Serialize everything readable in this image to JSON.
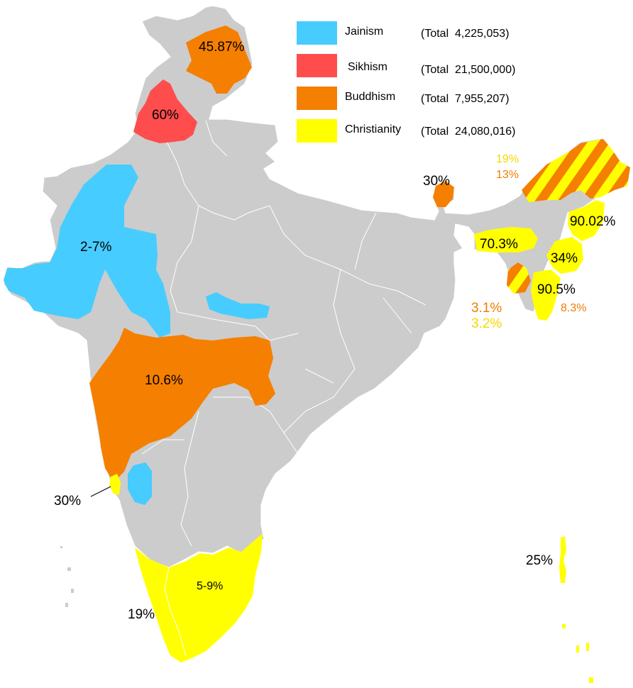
{
  "legend": [
    {
      "name": "Jainism",
      "total": "(Total  4,225,053)",
      "color": "#47ccff"
    },
    {
      "name": "Sikhism",
      "total": "(Total  21,500,000)",
      "color": "#ff4d4d"
    },
    {
      "name": "Buddhism",
      "total": "(Total  7,955,207)",
      "color": "#f57f00"
    },
    {
      "name": "Christianity",
      "total": "(Total  24,080,016)",
      "color": "#ffff00"
    }
  ],
  "colors": {
    "land": "#cccccc",
    "border": "#ffffff"
  },
  "labels": {
    "ladakh": "45.87%",
    "punjab": "60%",
    "rajasthan_gujarat": "2-7%",
    "sikkim": "30%",
    "arunachal_christian": "19%",
    "arunachal_buddhist": "13%",
    "nagaland": "90.02%",
    "meghalaya": "70.3%",
    "manipur": "34%",
    "mizoram": "90.5%",
    "mizoram_buddhist": "8.3%",
    "tripura_buddhist": "3.1%",
    "tripura_christian": "3.2%",
    "maharashtra": "10.6%",
    "goa": "30%",
    "tamilnadu": "5-9%",
    "kerala": "19%",
    "andaman": "25%"
  }
}
